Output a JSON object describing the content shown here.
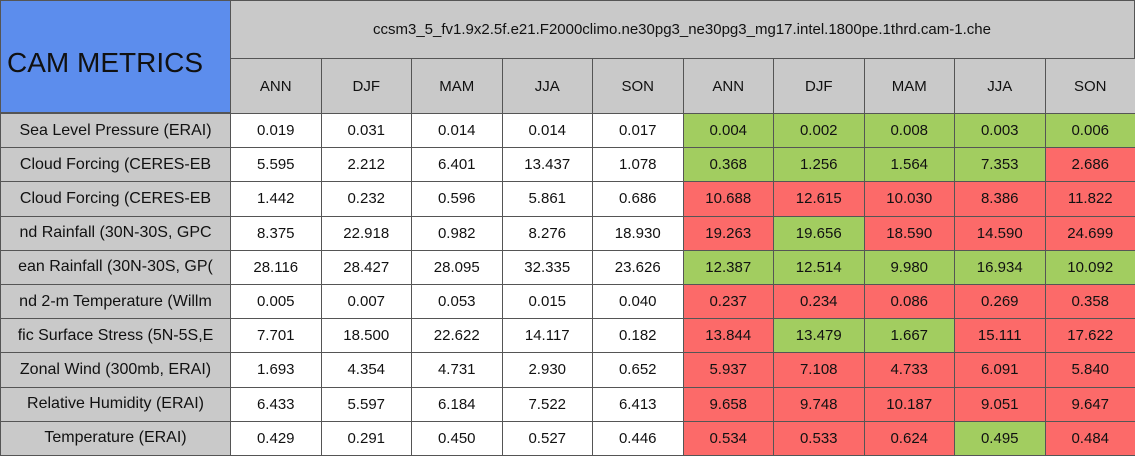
{
  "title": "CAM METRICS",
  "groups": [
    "ccsm3_5_fv1.9x2.5",
    "f.e21.F2000climo.ne30pg3_ne30pg3_mg17.intel.1800pe.1thrd.cam-1.che"
  ],
  "seasons": [
    "ANN",
    "DJF",
    "MAM",
    "JJA",
    "SON",
    "ANN",
    "DJF",
    "MAM",
    "JJA",
    "SON"
  ],
  "palette": {
    "green": "#a2cd60",
    "red": "#fc6a69"
  },
  "rows": [
    {
      "label": "Sea Level Pressure (ERAI)",
      "values": [
        "0.019",
        "0.031",
        "0.014",
        "0.014",
        "0.017",
        "0.004",
        "0.002",
        "0.008",
        "0.003",
        "0.006"
      ],
      "colors": [
        "green",
        "green",
        "green",
        "green",
        "green"
      ]
    },
    {
      "label": "Cloud Forcing (CERES-EB",
      "values": [
        "5.595",
        "2.212",
        "6.401",
        "13.437",
        "1.078",
        "0.368",
        "1.256",
        "1.564",
        "7.353",
        "2.686"
      ],
      "colors": [
        "green",
        "green",
        "green",
        "green",
        "red"
      ]
    },
    {
      "label": "Cloud Forcing (CERES-EB",
      "values": [
        "1.442",
        "0.232",
        "0.596",
        "5.861",
        "0.686",
        "10.688",
        "12.615",
        "10.030",
        "8.386",
        "11.822"
      ],
      "colors": [
        "red",
        "red",
        "red",
        "red",
        "red"
      ]
    },
    {
      "label": "nd Rainfall (30N-30S, GPC",
      "values": [
        "8.375",
        "22.918",
        "0.982",
        "8.276",
        "18.930",
        "19.263",
        "19.656",
        "18.590",
        "14.590",
        "24.699"
      ],
      "colors": [
        "red",
        "green",
        "red",
        "red",
        "red"
      ]
    },
    {
      "label": "ean Rainfall (30N-30S, GP(",
      "values": [
        "28.116",
        "28.427",
        "28.095",
        "32.335",
        "23.626",
        "12.387",
        "12.514",
        "9.980",
        "16.934",
        "10.092"
      ],
      "colors": [
        "green",
        "green",
        "green",
        "green",
        "green"
      ]
    },
    {
      "label": "nd 2-m Temperature (Willm",
      "values": [
        "0.005",
        "0.007",
        "0.053",
        "0.015",
        "0.040",
        "0.237",
        "0.234",
        "0.086",
        "0.269",
        "0.358"
      ],
      "colors": [
        "red",
        "red",
        "red",
        "red",
        "red"
      ]
    },
    {
      "label": "fic Surface Stress (5N-5S,E",
      "values": [
        "7.701",
        "18.500",
        "22.622",
        "14.117",
        "0.182",
        "13.844",
        "13.479",
        "1.667",
        "15.111",
        "17.622"
      ],
      "colors": [
        "red",
        "green",
        "green",
        "red",
        "red"
      ]
    },
    {
      "label": "Zonal Wind (300mb, ERAI)",
      "values": [
        "1.693",
        "4.354",
        "4.731",
        "2.930",
        "0.652",
        "5.937",
        "7.108",
        "4.733",
        "6.091",
        "5.840"
      ],
      "colors": [
        "red",
        "red",
        "red",
        "red",
        "red"
      ]
    },
    {
      "label": "Relative Humidity (ERAI)",
      "values": [
        "6.433",
        "5.597",
        "6.184",
        "7.522",
        "6.413",
        "9.658",
        "9.748",
        "10.187",
        "9.051",
        "9.647"
      ],
      "colors": [
        "red",
        "red",
        "red",
        "red",
        "red"
      ]
    },
    {
      "label": "Temperature (ERAI)",
      "values": [
        "0.429",
        "0.291",
        "0.450",
        "0.527",
        "0.446",
        "0.534",
        "0.533",
        "0.624",
        "0.495",
        "0.484"
      ],
      "colors": [
        "red",
        "red",
        "red",
        "green",
        "red"
      ]
    }
  ]
}
